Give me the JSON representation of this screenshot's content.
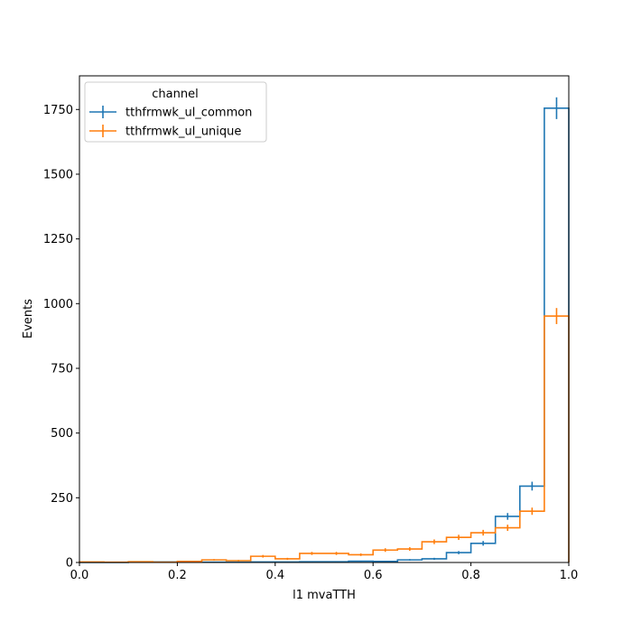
{
  "chart_data": {
    "type": "histogram-step",
    "xlabel": "l1 mvaTTH",
    "ylabel": "Events",
    "xlim": [
      0,
      1
    ],
    "ylim": [
      0,
      1880
    ],
    "x_ticks": [
      "0.0",
      "0.2",
      "0.4",
      "0.6",
      "0.8",
      "1.0"
    ],
    "y_ticks": [
      "0",
      "250",
      "500",
      "750",
      "1000",
      "1250",
      "1500",
      "1750"
    ],
    "bin_edges": [
      0,
      0.05,
      0.1,
      0.15,
      0.2,
      0.25,
      0.3,
      0.35,
      0.4,
      0.45,
      0.5,
      0.55,
      0.6,
      0.65,
      0.7,
      0.75,
      0.8,
      0.85,
      0.9,
      0.95,
      1.0
    ],
    "legend": {
      "title": "channel",
      "location": "upper left"
    },
    "series": [
      {
        "name": "tthfrmwk_ul_common",
        "color": "#1f77b4",
        "values": [
          0,
          0,
          1,
          2,
          1,
          1,
          1,
          2,
          2,
          3,
          3,
          5,
          4,
          10,
          14,
          38,
          74,
          178,
          295,
          1755
        ],
        "errors": [
          0,
          0,
          1,
          1,
          1,
          1,
          1,
          1,
          1,
          2,
          2,
          2,
          2,
          3,
          4,
          6,
          9,
          13,
          17,
          42
        ]
      },
      {
        "name": "tthfrmwk_ul_unique",
        "color": "#ff7f0e",
        "values": [
          2,
          1,
          3,
          1,
          4,
          10,
          7,
          24,
          14,
          35,
          35,
          30,
          48,
          52,
          80,
          97,
          115,
          134,
          198,
          952
        ],
        "errors": [
          1,
          1,
          2,
          1,
          2,
          3,
          3,
          5,
          4,
          6,
          6,
          5,
          7,
          7,
          9,
          10,
          11,
          12,
          14,
          31
        ]
      }
    ]
  }
}
